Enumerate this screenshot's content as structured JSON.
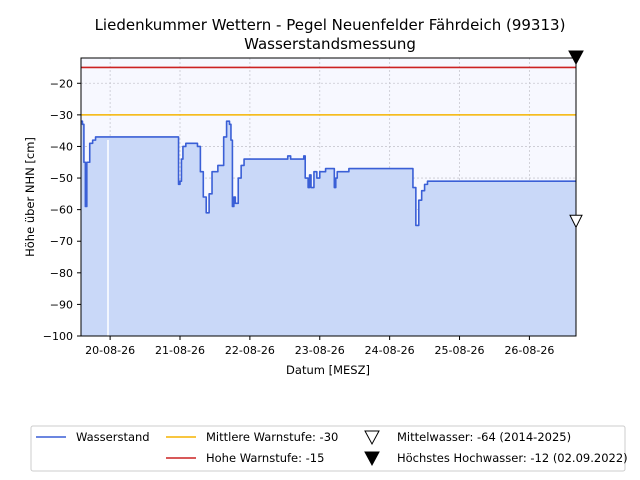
{
  "chart_data": {
    "type": "area",
    "title": "Liedenkummer Wettern - Pegel Neuenfelder Fährdeich (99313)",
    "subtitle": "Wasserstandsmessung",
    "xlabel": "Datum [MESZ]",
    "ylabel": "Höhe über NHN [cm]",
    "xlim": [
      "2026-08-19 14:00",
      "2026-08-26 16:00"
    ],
    "ylim": [
      -100,
      -12
    ],
    "x_ticks": [
      "2026-08-20 00:00",
      "2026-08-21 00:00",
      "2026-08-22 00:00",
      "2026-08-23 00:00",
      "2026-08-24 00:00",
      "2026-08-25 00:00",
      "2026-08-26 00:00"
    ],
    "x_tick_labels": [
      "20-08-26",
      "21-08-26",
      "22-08-26",
      "23-08-26",
      "24-08-26",
      "25-08-26",
      "26-08-26"
    ],
    "y_ticks": [
      -100,
      -90,
      -80,
      -70,
      -60,
      -50,
      -40,
      -30,
      -20
    ],
    "y_tick_labels": [
      "−100",
      "−90",
      "−80",
      "−70",
      "−60",
      "−50",
      "−40",
      "−30",
      "−20"
    ],
    "grid": true,
    "legend_position": "bottom",
    "colors": {
      "water_line": "#3a5fd6",
      "water_fill": "#c9d8f8",
      "warn_mid": "#f5b400",
      "warn_high": "#cc2222",
      "plot_bg": "#f7f8ff",
      "grid": "#c8c8d0"
    },
    "series": [
      {
        "name": "Wasserstand",
        "points": [
          [
            "2026-08-19 14:00",
            -32
          ],
          [
            "2026-08-19 14:30",
            -33
          ],
          [
            "2026-08-19 15:00",
            -45
          ],
          [
            "2026-08-19 15:30",
            -59
          ],
          [
            "2026-08-19 16:00",
            -45
          ],
          [
            "2026-08-19 17:00",
            -39
          ],
          [
            "2026-08-19 18:00",
            -38
          ],
          [
            "2026-08-19 19:00",
            -37
          ],
          [
            "2026-08-19 21:00",
            -37
          ],
          [
            "2026-08-20 12:00",
            -37
          ],
          [
            "2026-08-20 23:00",
            -37
          ],
          [
            "2026-08-20 23:30",
            -52
          ],
          [
            "2026-08-21 00:00",
            -51
          ],
          [
            "2026-08-21 00:30",
            -44
          ],
          [
            "2026-08-21 01:00",
            -40
          ],
          [
            "2026-08-21 02:00",
            -39
          ],
          [
            "2026-08-21 05:00",
            -39
          ],
          [
            "2026-08-21 06:00",
            -40
          ],
          [
            "2026-08-21 07:00",
            -48
          ],
          [
            "2026-08-21 08:00",
            -56
          ],
          [
            "2026-08-21 09:00",
            -61
          ],
          [
            "2026-08-21 10:00",
            -55
          ],
          [
            "2026-08-21 11:00",
            -48
          ],
          [
            "2026-08-21 13:00",
            -46
          ],
          [
            "2026-08-21 14:30",
            -46
          ],
          [
            "2026-08-21 15:00",
            -37
          ],
          [
            "2026-08-21 16:00",
            -32
          ],
          [
            "2026-08-21 17:00",
            -33
          ],
          [
            "2026-08-21 17:30",
            -38
          ],
          [
            "2026-08-21 18:00",
            -59
          ],
          [
            "2026-08-21 18:30",
            -56
          ],
          [
            "2026-08-21 19:00",
            -58
          ],
          [
            "2026-08-21 20:00",
            -50
          ],
          [
            "2026-08-21 21:00",
            -46
          ],
          [
            "2026-08-21 22:00",
            -44
          ],
          [
            "2026-08-22 12:00",
            -44
          ],
          [
            "2026-08-22 13:00",
            -43
          ],
          [
            "2026-08-22 14:00",
            -44
          ],
          [
            "2026-08-22 18:00",
            -44
          ],
          [
            "2026-08-22 18:30",
            -43
          ],
          [
            "2026-08-22 19:00",
            -50
          ],
          [
            "2026-08-22 20:00",
            -53
          ],
          [
            "2026-08-22 20:30",
            -49
          ],
          [
            "2026-08-22 21:00",
            -53
          ],
          [
            "2026-08-22 22:00",
            -48
          ],
          [
            "2026-08-22 23:00",
            -50
          ],
          [
            "2026-08-23 00:00",
            -48
          ],
          [
            "2026-08-23 01:00",
            -48
          ],
          [
            "2026-08-23 02:00",
            -47
          ],
          [
            "2026-08-23 04:00",
            -47
          ],
          [
            "2026-08-23 05:00",
            -53
          ],
          [
            "2026-08-23 05:30",
            -50
          ],
          [
            "2026-08-23 06:00",
            -48
          ],
          [
            "2026-08-23 09:00",
            -48
          ],
          [
            "2026-08-23 10:00",
            -47
          ],
          [
            "2026-08-24 00:00",
            -47
          ],
          [
            "2026-08-24 07:00",
            -47
          ],
          [
            "2026-08-24 08:00",
            -53
          ],
          [
            "2026-08-24 09:00",
            -65
          ],
          [
            "2026-08-24 10:00",
            -57
          ],
          [
            "2026-08-24 11:00",
            -54
          ],
          [
            "2026-08-24 12:00",
            -52
          ],
          [
            "2026-08-24 13:00",
            -51
          ],
          [
            "2026-08-25 00:00",
            -51
          ],
          [
            "2026-08-26 00:00",
            -51
          ],
          [
            "2026-08-26 16:00",
            -51
          ]
        ]
      }
    ],
    "reference_lines": [
      {
        "name": "Mittlere Warnstufe: -30",
        "value": -30
      },
      {
        "name": "Hohe Warnstufe: -15",
        "value": -15
      }
    ],
    "markers": [
      {
        "name": "Mittelwasser: -64 (2014-2025)",
        "value": -64
      },
      {
        "name": "Höchstes Hochwasser: -12 (02.09.2022)",
        "value": -12
      }
    ]
  }
}
